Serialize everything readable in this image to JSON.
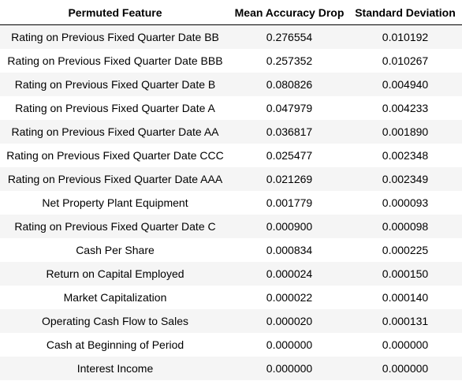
{
  "table": {
    "headers": [
      "Permuted Feature",
      "Mean Accuracy Drop",
      "Standard Deviation"
    ],
    "rows": [
      [
        "Rating on Previous Fixed Quarter Date BB",
        "0.276554",
        "0.010192"
      ],
      [
        "Rating on Previous Fixed Quarter Date BBB",
        "0.257352",
        "0.010267"
      ],
      [
        "Rating on Previous Fixed Quarter Date B",
        "0.080826",
        "0.004940"
      ],
      [
        "Rating on Previous Fixed Quarter Date A",
        "0.047979",
        "0.004233"
      ],
      [
        "Rating on Previous Fixed Quarter Date AA",
        "0.036817",
        "0.001890"
      ],
      [
        "Rating on Previous Fixed Quarter Date CCC",
        "0.025477",
        "0.002348"
      ],
      [
        "Rating on Previous Fixed Quarter Date AAA",
        "0.021269",
        "0.002349"
      ],
      [
        "Net Property Plant Equipment",
        "0.001779",
        "0.000093"
      ],
      [
        "Rating on Previous Fixed Quarter Date C",
        "0.000900",
        "0.000098"
      ],
      [
        "Cash Per Share",
        "0.000834",
        "0.000225"
      ],
      [
        "Return on Capital Employed",
        "0.000024",
        "0.000150"
      ],
      [
        "Market Capitalization",
        "0.000022",
        "0.000140"
      ],
      [
        "Operating Cash Flow to Sales",
        "0.000020",
        "0.000131"
      ],
      [
        "Cash at Beginning of Period",
        "0.000000",
        "0.000000"
      ],
      [
        "Interest Income",
        "0.000000",
        "0.000000"
      ]
    ]
  }
}
